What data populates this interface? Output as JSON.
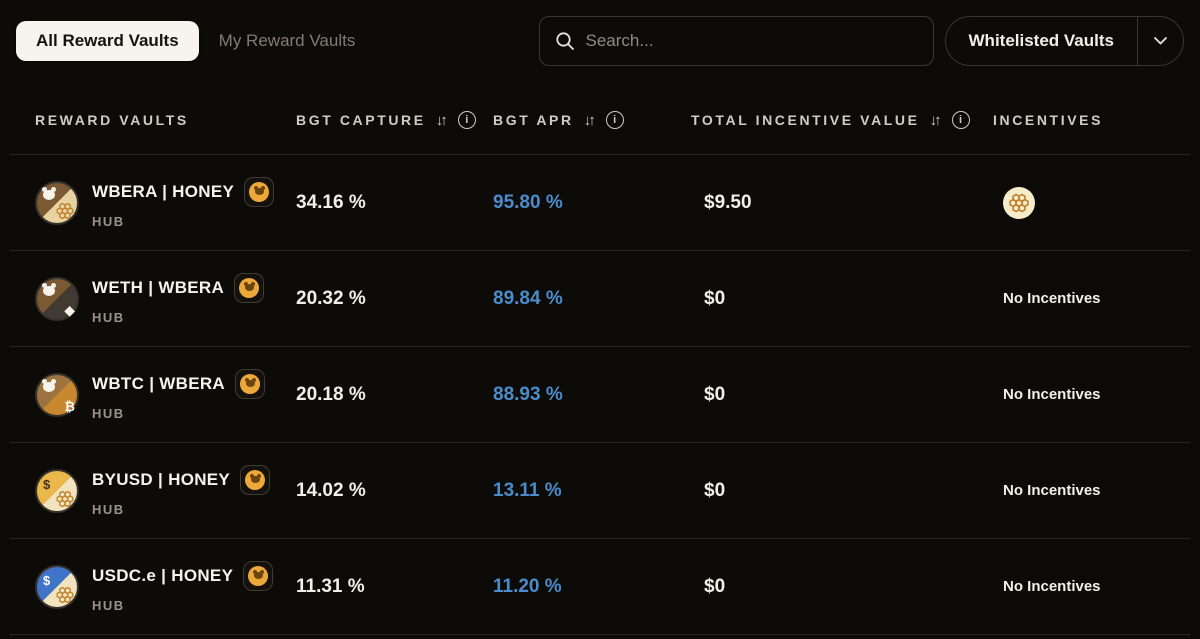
{
  "tabs": {
    "all": "All Reward Vaults",
    "my": "My Reward Vaults"
  },
  "search": {
    "placeholder": "Search..."
  },
  "filter": {
    "label": "Whitelisted Vaults"
  },
  "colors": {
    "accent_blue": "#4a8ccc",
    "badge_gold": "#eca93a",
    "honey_cream": "#f6ecca",
    "honeycomb_orange": "#c07f2a"
  },
  "table": {
    "headers": [
      {
        "label": "REWARD VAULTS",
        "sortable": false,
        "info": false
      },
      {
        "label": "BGT CAPTURE",
        "sortable": true,
        "info": true
      },
      {
        "label": "BGT APR",
        "sortable": true,
        "info": true
      },
      {
        "label": "TOTAL INCENTIVE VALUE",
        "sortable": true,
        "info": true
      },
      {
        "label": "INCENTIVES",
        "sortable": false,
        "info": false
      }
    ],
    "rows": [
      {
        "name": "WBERA | HONEY",
        "network": "HUB",
        "bgt_capture": "34.16 %",
        "bgt_apr": "95.80 %",
        "total_incentive_value": "$9.50",
        "incentives": {
          "type": "icon",
          "icon": "honey-token-icon"
        },
        "icon": "wbera-honey",
        "badge_icon": "bgt-token-badge"
      },
      {
        "name": "WETH | WBERA",
        "network": "HUB",
        "bgt_capture": "20.32 %",
        "bgt_apr": "89.84 %",
        "total_incentive_value": "$0",
        "incentives": {
          "type": "text",
          "text": "No Incentives"
        },
        "icon": "weth-wbera",
        "badge_icon": "bgt-token-badge"
      },
      {
        "name": "WBTC | WBERA",
        "network": "HUB",
        "bgt_capture": "20.18 %",
        "bgt_apr": "88.93 %",
        "total_incentive_value": "$0",
        "incentives": {
          "type": "text",
          "text": "No Incentives"
        },
        "icon": "wbtc-wbera",
        "badge_icon": "bgt-token-badge"
      },
      {
        "name": "BYUSD | HONEY",
        "network": "HUB",
        "bgt_capture": "14.02 %",
        "bgt_apr": "13.11 %",
        "total_incentive_value": "$0",
        "incentives": {
          "type": "text",
          "text": "No Incentives"
        },
        "icon": "byusd-honey",
        "badge_icon": "bgt-token-badge"
      },
      {
        "name": "USDC.e | HONEY",
        "network": "HUB",
        "bgt_capture": "11.31 %",
        "bgt_apr": "11.20 %",
        "total_incentive_value": "$0",
        "incentives": {
          "type": "text",
          "text": "No Incentives"
        },
        "icon": "usdce-honey",
        "badge_icon": "bgt-token-badge"
      }
    ]
  },
  "token_icons": {
    "wbera-honey": {
      "top": "#7b5a33",
      "bottom": "#e7d3a1",
      "top_glyph": "bear-white",
      "bottom_glyph": "honeycomb"
    },
    "weth-wbera": {
      "top": "#7b5a33",
      "bottom": "#403a33",
      "top_glyph": "bear-white",
      "bottom_glyph": "eth-diamond"
    },
    "wbtc-wbera": {
      "top": "#9c7340",
      "bottom": "#c8882f",
      "top_glyph": "bear-white",
      "bottom_glyph": "btc"
    },
    "byusd-honey": {
      "top": "#e9b74b",
      "bottom": "#f0e3bd",
      "top_glyph": "dollar-dark",
      "bottom_glyph": "honeycomb"
    },
    "usdce-honey": {
      "top": "#3f74c9",
      "bottom": "#f0e3bd",
      "top_glyph": "dollar-white",
      "bottom_glyph": "honeycomb"
    }
  }
}
